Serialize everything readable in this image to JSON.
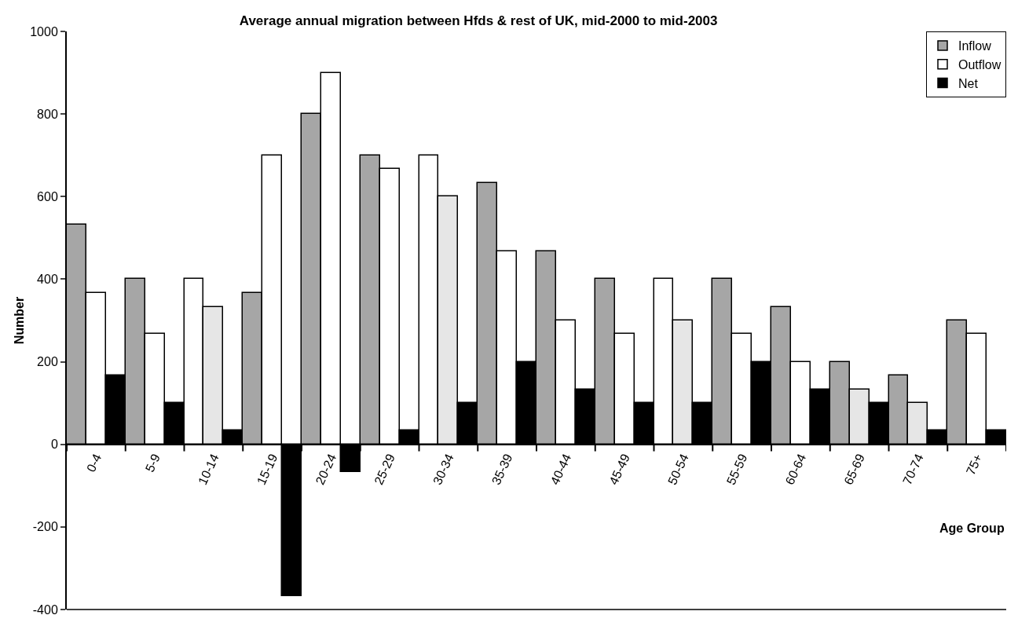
{
  "chart_data": {
    "type": "bar",
    "title": "Average annual migration between Hfds & rest of UK, mid-2000 to mid-2003",
    "xlabel": "Age Group",
    "ylabel": "Number",
    "categories": [
      "0-4",
      "5-9",
      "10-14",
      "15-19",
      "20-24",
      "25-29",
      "30-34",
      "35-39",
      "40-44",
      "45-49",
      "50-54",
      "55-59",
      "60-64",
      "65-69",
      "70-74",
      "75+"
    ],
    "series": [
      {
        "name": "Inflow",
        "color": "#a6a6a6",
        "colors": [
          "#a6a6a6",
          "#a6a6a6",
          "#ffffff",
          "#a6a6a6",
          "#a6a6a6",
          "#a6a6a6",
          "#ffffff",
          "#a6a6a6",
          "#a6a6a6",
          "#a6a6a6",
          "#ffffff",
          "#a6a6a6",
          "#a6a6a6",
          "#a6a6a6",
          "#a6a6a6",
          "#a6a6a6"
        ],
        "values": [
          533,
          400,
          400,
          367,
          800,
          700,
          700,
          633,
          467,
          400,
          400,
          400,
          333,
          200,
          167,
          300
        ]
      },
      {
        "name": "Outflow",
        "color": "#ffffff",
        "colors": [
          "#ffffff",
          "#ffffff",
          "#e6e6e6",
          "#ffffff",
          "#ffffff",
          "#ffffff",
          "#e6e6e6",
          "#ffffff",
          "#ffffff",
          "#ffffff",
          "#e6e6e6",
          "#ffffff",
          "#ffffff",
          "#e6e6e6",
          "#e6e6e6",
          "#ffffff"
        ],
        "values": [
          367,
          267,
          333,
          700,
          900,
          667,
          600,
          467,
          300,
          267,
          300,
          267,
          200,
          133,
          100,
          267
        ]
      },
      {
        "name": "Net",
        "color": "#000000",
        "values": [
          167,
          100,
          33,
          -367,
          -67,
          33,
          100,
          200,
          133,
          100,
          100,
          200,
          133,
          100,
          33,
          33
        ]
      }
    ],
    "ylim": [
      -400,
      1000
    ],
    "yticks": [
      -400,
      -200,
      0,
      200,
      400,
      600,
      800,
      1000
    ],
    "legend": "top right"
  }
}
